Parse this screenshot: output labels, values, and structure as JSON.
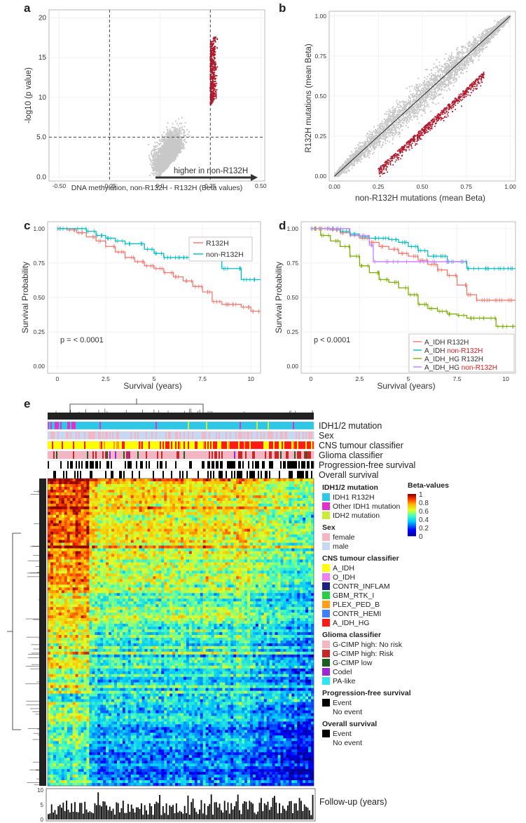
{
  "panels": {
    "a": "a",
    "b": "b",
    "c": "c",
    "d": "d",
    "e": "e"
  },
  "colors": {
    "grey": "#c8c8c8",
    "darkred": "#b2182b",
    "red": "#f8766d",
    "teal": "#00bfc4",
    "green": "#7cae00",
    "purple": "#c77cff"
  },
  "chart_data": [
    {
      "type": "scatter",
      "panel": "a",
      "xlabel": "DNA methylation, non-R132H - R132H (Beta values)",
      "ylabel": "-log10 (p value)",
      "xticks": [
        "-0.50",
        "-0.25",
        "0.0",
        "0.25",
        "0.50"
      ],
      "yticks": [
        "0.0",
        "5.0",
        "10",
        "15",
        "20"
      ],
      "xlim": [
        -0.55,
        0.52
      ],
      "ylim": [
        -0.5,
        21
      ],
      "threshold_lines": {
        "x": [
          -0.25,
          0.25
        ],
        "y": 5.0
      },
      "annotation": "higher in non-R132H"
    },
    {
      "type": "scatter",
      "panel": "b",
      "xlabel": "non-R132H mutations (mean Beta)",
      "ylabel": "R132H mutations (mean Beta)",
      "xticks": [
        "0.00",
        "0.25",
        "0.50",
        "0.75",
        "1.00"
      ],
      "yticks": [
        "0.00",
        "0.25",
        "0.50",
        "0.75",
        "1.00"
      ],
      "xlim": [
        -0.03,
        1.03
      ],
      "ylim": [
        -0.03,
        1.03
      ]
    },
    {
      "type": "line",
      "panel": "c",
      "xlabel": "Survival (years)",
      "ylabel": "Survival Probability",
      "xticks": [
        "0",
        "2.5",
        "5",
        "7.5",
        "10"
      ],
      "yticks": [
        "0.00",
        "0.25",
        "0.50",
        "0.75",
        "1.00"
      ],
      "xlim": [
        -0.5,
        10.5
      ],
      "ylim": [
        -0.05,
        1.05
      ],
      "pvalue": "p = < 0.0001",
      "series": [
        {
          "name": "R132H",
          "color": "#f8766d",
          "x": [
            0,
            0.5,
            1,
            1.5,
            2,
            2.5,
            3,
            3.5,
            4,
            4.5,
            5,
            5.5,
            6,
            6.5,
            7,
            7.5,
            8,
            8.5,
            9,
            9.5,
            10,
            10.5
          ],
          "y": [
            1,
            0.99,
            0.97,
            0.94,
            0.91,
            0.87,
            0.83,
            0.79,
            0.76,
            0.73,
            0.71,
            0.68,
            0.65,
            0.62,
            0.58,
            0.54,
            0.47,
            0.45,
            0.45,
            0.43,
            0.4,
            0.4
          ]
        },
        {
          "name": "non-R132H",
          "color": "#00bfc4",
          "x": [
            0,
            1,
            1.5,
            2,
            2.5,
            3,
            3.5,
            4,
            4.5,
            5,
            5.5,
            6,
            6.5,
            7,
            7.5,
            8,
            8.5,
            9,
            9.5,
            10,
            10.5
          ],
          "y": [
            1,
            1,
            0.98,
            0.95,
            0.93,
            0.91,
            0.89,
            0.89,
            0.85,
            0.82,
            0.79,
            0.79,
            0.79,
            0.79,
            0.79,
            0.78,
            0.71,
            0.71,
            0.63,
            0.63,
            0.63
          ]
        }
      ]
    },
    {
      "type": "line",
      "panel": "d",
      "xlabel": "Survival (years)",
      "ylabel": "Survival Probability",
      "xticks": [
        "0",
        "2.5",
        "5",
        "7.5",
        "10"
      ],
      "yticks": [
        "0.00",
        "0.25",
        "0.50",
        "0.75",
        "1.00"
      ],
      "xlim": [
        -0.5,
        10.5
      ],
      "ylim": [
        -0.05,
        1.05
      ],
      "pvalue": "p < 0.0001",
      "series": [
        {
          "name": "A_IDH R132H",
          "name_part1": "A_IDH",
          "name_part2": "R132H",
          "color": "#f8766d",
          "x": [
            0,
            0.5,
            1,
            1.5,
            2,
            2.5,
            3,
            3.5,
            4,
            4.5,
            5,
            5.5,
            6,
            6.5,
            7,
            7.5,
            8,
            8.5,
            9,
            9.5,
            10,
            10.5
          ],
          "y": [
            1,
            1,
            0.99,
            0.97,
            0.95,
            0.93,
            0.9,
            0.87,
            0.85,
            0.82,
            0.8,
            0.77,
            0.74,
            0.7,
            0.66,
            0.59,
            0.52,
            0.48,
            0.48,
            0.48,
            0.48,
            0.48
          ]
        },
        {
          "name": "A_IDH non-R132H",
          "name_part1": "A_IDH",
          "name_part2": "non-R132H",
          "color": "#00bfc4",
          "x": [
            0,
            1,
            1.5,
            2,
            2.5,
            3,
            3.5,
            4,
            4.5,
            5,
            5.5,
            6,
            6.5,
            7,
            7.5,
            8,
            8.5,
            9,
            9.5,
            10,
            10.5
          ],
          "y": [
            1,
            1,
            0.98,
            0.96,
            0.94,
            0.93,
            0.93,
            0.92,
            0.9,
            0.87,
            0.84,
            0.8,
            0.8,
            0.76,
            0.76,
            0.71,
            0.71,
            0.71,
            0.71,
            0.71,
            0.71
          ]
        },
        {
          "name": "A_IDH_HG R132H",
          "name_part1": "A_IDH_HG",
          "name_part2": "R132H",
          "color": "#7cae00",
          "x": [
            0,
            0.5,
            1,
            1.5,
            2,
            2.5,
            3,
            3.5,
            4,
            4.5,
            5,
            5.5,
            6,
            6.5,
            7,
            7.5,
            8,
            8.5,
            9,
            9.5,
            10,
            10.5
          ],
          "y": [
            1,
            0.95,
            0.91,
            0.87,
            0.8,
            0.73,
            0.68,
            0.63,
            0.61,
            0.57,
            0.52,
            0.45,
            0.42,
            0.4,
            0.38,
            0.37,
            0.35,
            0.35,
            0.35,
            0.29,
            0.29,
            0.29
          ]
        },
        {
          "name": "A_IDH_HG non-R132H",
          "name_part1": "A_IDH_HG",
          "name_part2": "non-R132H",
          "color": "#c77cff",
          "x": [
            0,
            1,
            2,
            3,
            3.2,
            4,
            5,
            6,
            7,
            8
          ],
          "y": [
            1,
            1,
            0.95,
            0.88,
            0.76,
            0.76,
            0.76,
            0.76,
            0.76,
            0.76
          ]
        }
      ]
    },
    {
      "type": "heatmap",
      "panel": "e",
      "annotation_rows": [
        "IDH1/2 mutation",
        "Sex",
        "CNS tumour classifier",
        "Glioma classifier",
        "Progression-free survival",
        "Overall survival"
      ],
      "colorbar": {
        "title": "Beta-values",
        "ticks": [
          "1",
          "0.8",
          "0.6",
          "0.4",
          "0.2",
          "0"
        ]
      },
      "followup": {
        "label": "Follow-up (years)",
        "yticks": [
          "10",
          "5",
          "0"
        ]
      }
    }
  ],
  "legend_e": {
    "groups": [
      {
        "title": "IDH1/2 mutation",
        "items": [
          {
            "label": "IDH1 R132H",
            "color": "#2ec7e6"
          },
          {
            "label": "Other IDH1 mutation",
            "color": "#e231c9"
          },
          {
            "label": "IDH2 mutation",
            "color": "#cdea38"
          }
        ]
      },
      {
        "title": "Sex",
        "items": [
          {
            "label": "female",
            "color": "#f4b6c2"
          },
          {
            "label": "male",
            "color": "#c6d8f2"
          }
        ]
      },
      {
        "title": "CNS tumour classifier",
        "items": [
          {
            "label": "A_IDH",
            "color": "#ffff00"
          },
          {
            "label": "O_IDH",
            "color": "#ee82ee"
          },
          {
            "label": "CONTR_INFLAM",
            "color": "#1a237e"
          },
          {
            "label": "GBM_RTK_I",
            "color": "#2ecc40"
          },
          {
            "label": "PLEX_PED_B",
            "color": "#ff9f1c"
          },
          {
            "label": "CONTR_HEMI",
            "color": "#3d7fff"
          },
          {
            "label": "A_IDH_HG",
            "color": "#ff1a1a"
          }
        ]
      },
      {
        "title": "Glioma classifier",
        "items": [
          {
            "label": "G-CIMP high: No risk",
            "color": "#f4b6c2"
          },
          {
            "label": "G-CIMP high: Risk",
            "color": "#c62828"
          },
          {
            "label": "G-CIMP low",
            "color": "#1b5e20"
          },
          {
            "label": "Codel",
            "color": "#9c27d6"
          },
          {
            "label": "PA-like",
            "color": "#2ee6f0"
          }
        ]
      },
      {
        "title": "Progression-free survival",
        "items": [
          {
            "label": "Event",
            "color": "#000000"
          },
          {
            "label": "No event",
            "color": "#ffffff"
          }
        ]
      },
      {
        "title": "Overall survival",
        "items": [
          {
            "label": "Event",
            "color": "#000000"
          },
          {
            "label": "No event",
            "color": "#ffffff"
          }
        ]
      }
    ]
  }
}
